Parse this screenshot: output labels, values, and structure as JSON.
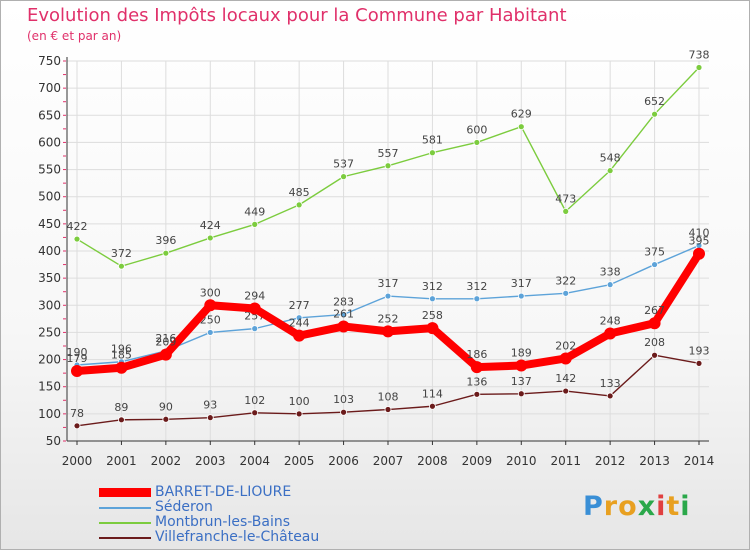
{
  "header": {
    "title": "Evolution des Impôts locaux pour la Commune par Habitant",
    "subtitle": "(en € et par an)"
  },
  "brand": {
    "letters": [
      "P",
      "r",
      "o",
      "x",
      "i",
      "t",
      "i"
    ],
    "colors": [
      "#3a8fd6",
      "#e8a020",
      "#e8a020",
      "#2aa84a",
      "#e04040",
      "#e8a020",
      "#2aa84a"
    ]
  },
  "colors": {
    "grid": "#dddddd",
    "axis": "#333333",
    "tick_text": "#333333",
    "value_text": "#444444",
    "axis_accent": "#e0306a"
  },
  "chart_data": {
    "type": "line",
    "title": "Evolution des Impôts locaux pour la Commune par Habitant",
    "subtitle": "(en € et par an)",
    "xlabel": "",
    "ylabel": "",
    "x": [
      2000,
      2001,
      2002,
      2003,
      2004,
      2005,
      2006,
      2007,
      2008,
      2009,
      2010,
      2011,
      2012,
      2013,
      2014
    ],
    "x_tick_labels": [
      "2000",
      "2001",
      "2002",
      "2003",
      "2004",
      "2005",
      "2006",
      "2007",
      "2008",
      "2009",
      "2010",
      "2011",
      "2012",
      "2013",
      "2014"
    ],
    "ylim": [
      50,
      750
    ],
    "y_ticks": [
      50,
      100,
      150,
      200,
      250,
      300,
      350,
      400,
      450,
      500,
      550,
      600,
      650,
      700,
      750
    ],
    "grid": true,
    "legend_position": "bottom-left",
    "series": [
      {
        "name": "Villefranche-le-Château",
        "color": "#6b1b1b",
        "values": [
          78,
          89,
          90,
          93,
          102,
          100,
          103,
          108,
          114,
          136,
          137,
          142,
          133,
          208,
          193
        ],
        "labels": [
          "78",
          "89",
          "90",
          "93",
          "102",
          "100",
          "103",
          "108",
          "114",
          "136",
          "137",
          "142",
          "133",
          "208",
          "193"
        ]
      },
      {
        "name": "Montbrun-les-Bains",
        "color": "#7ccc3e",
        "values": [
          422,
          372,
          396,
          424,
          449,
          485,
          537,
          557,
          581,
          600,
          629,
          473,
          548,
          652,
          738
        ],
        "labels": [
          "422",
          "372",
          "396",
          "424",
          "449",
          "485",
          "537",
          "557",
          "581",
          "600",
          "629",
          "473",
          "548",
          "652",
          "738"
        ]
      },
      {
        "name": "Séderon",
        "color": "#5da3d9",
        "values": [
          190,
          196,
          216,
          250,
          257,
          277,
          283,
          317,
          312,
          312,
          317,
          322,
          338,
          375,
          410
        ],
        "labels": [
          "190",
          "196",
          "216",
          "250",
          "257",
          "277",
          "283",
          "317",
          "312",
          "312",
          "317",
          "322",
          "338",
          "375",
          "410"
        ]
      },
      {
        "name": "BARRET-DE-LIOURE",
        "color": "#ff0000",
        "values": [
          179,
          185,
          209,
          300,
          294,
          244,
          261,
          252,
          258,
          186,
          189,
          202,
          248,
          267,
          395
        ],
        "labels": [
          "179",
          "185",
          "209",
          "300",
          "294",
          "244",
          "261",
          "252",
          "258",
          "186",
          "189",
          "202",
          "248",
          "267",
          "395"
        ]
      }
    ]
  },
  "legend": [
    {
      "name": "BARRET-DE-LIOURE",
      "color": "#ff0000",
      "thick": true
    },
    {
      "name": "Séderon",
      "color": "#5da3d9",
      "thick": false
    },
    {
      "name": "Montbrun-les-Bains",
      "color": "#7ccc3e",
      "thick": false
    },
    {
      "name": "Villefranche-le-Château",
      "color": "#6b1b1b",
      "thick": false
    }
  ]
}
